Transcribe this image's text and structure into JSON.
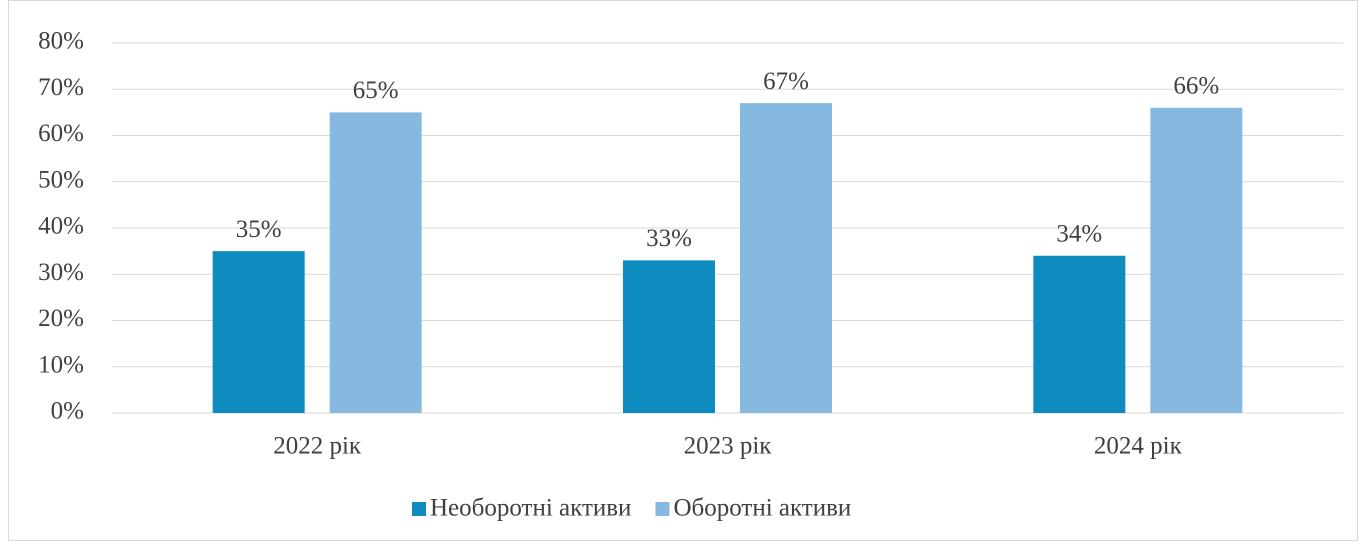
{
  "chart_data": {
    "type": "bar",
    "categories": [
      "2022 рік",
      "2023 рік",
      "2024 рік"
    ],
    "series": [
      {
        "name": "Необоротні активи",
        "color": "#0e8cc0",
        "values": [
          35,
          33,
          34
        ],
        "value_labels": [
          "35%",
          "33%",
          "34%"
        ]
      },
      {
        "name": "Оборотні активи",
        "color": "#86b9e0",
        "values": [
          65,
          67,
          66
        ],
        "value_labels": [
          "65%",
          "67%",
          "66%"
        ]
      }
    ],
    "ylim": [
      0,
      80
    ],
    "yticks": [
      {
        "value": 0,
        "label": "0%"
      },
      {
        "value": 10,
        "label": "10%"
      },
      {
        "value": 20,
        "label": "20%"
      },
      {
        "value": 30,
        "label": "30%"
      },
      {
        "value": 40,
        "label": "40%"
      },
      {
        "value": 50,
        "label": "50%"
      },
      {
        "value": 60,
        "label": "60%"
      },
      {
        "value": 70,
        "label": "70%"
      },
      {
        "value": 80,
        "label": "80%"
      }
    ],
    "grid": true,
    "legend": "bottom"
  }
}
